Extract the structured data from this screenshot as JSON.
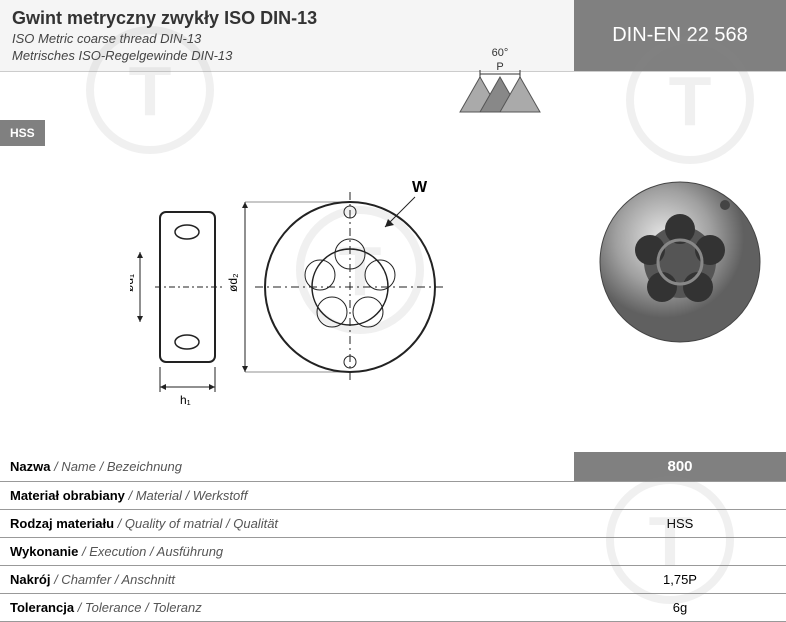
{
  "header": {
    "title_main": "Gwint metryczny zwykły ISO DIN-13",
    "title_sub1": "ISO Metric coarse thread DIN-13",
    "title_sub2": "Metrisches ISO-Regelgewinde DIN-13",
    "standard": "DIN-EN 22 568"
  },
  "badge": {
    "hss": "HSS"
  },
  "diagram": {
    "angle_label": "60°",
    "pitch_label": "P",
    "w_label": "W",
    "d1_label": "ød₁",
    "d2_label": "ød₂",
    "h1_label": "h₁"
  },
  "specs": {
    "rows": [
      {
        "label_bold": "Nazwa",
        "label_rest": " / Name / Bezeichnung",
        "value": "800",
        "highlight": true
      },
      {
        "label_bold": "Materiał obrabiany",
        "label_rest": " / Material / Werkstoff",
        "value": "",
        "highlight": false
      },
      {
        "label_bold": "Rodzaj materiału",
        "label_rest": " / Quality of matrial / Qualität",
        "value": "HSS",
        "highlight": false
      },
      {
        "label_bold": "Wykonanie",
        "label_rest": " / Execution / Ausführung",
        "value": "",
        "highlight": false
      },
      {
        "label_bold": "Nakrój",
        "label_rest": " / Chamfer / Anschnitt",
        "value": "1,75P",
        "highlight": false
      },
      {
        "label_bold": "Tolerancja",
        "label_rest": " / Tolerance / Toleranz",
        "value": "6g",
        "highlight": false
      }
    ]
  },
  "colors": {
    "header_bg": "#808080",
    "badge_bg": "#808080",
    "border": "#999999"
  }
}
